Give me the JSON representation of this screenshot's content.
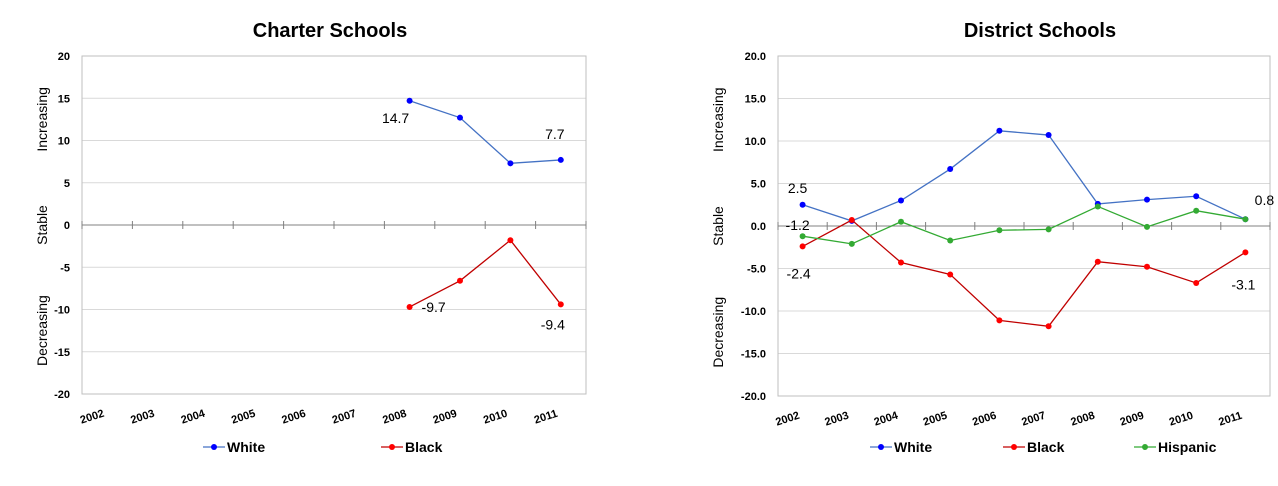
{
  "chart_data": [
    {
      "type": "line",
      "title": "Charter Schools",
      "categories": [
        "2002",
        "2003",
        "2004",
        "2005",
        "2006",
        "2007",
        "2008",
        "2009",
        "2010",
        "2011"
      ],
      "ylim": [
        -20,
        20
      ],
      "yticks": [
        "20",
        "15",
        "10",
        "5",
        "0",
        "-5",
        "-10",
        "-15",
        "-20"
      ],
      "yticks_values": [
        20,
        15,
        10,
        5,
        0,
        -5,
        -10,
        -15,
        -20
      ],
      "band_labels": [
        "Increasing",
        "Stable",
        "Decreasing"
      ],
      "grid": true,
      "legend_position": "bottom",
      "series": [
        {
          "name": "White",
          "color": "#0000ff",
          "line_color": "#4472c4",
          "values": [
            null,
            null,
            null,
            null,
            null,
            null,
            14.7,
            12.7,
            7.3,
            7.7
          ]
        },
        {
          "name": "Black",
          "color": "#ff0000",
          "line_color": "#c00000",
          "values": [
            null,
            null,
            null,
            null,
            null,
            null,
            -9.7,
            -6.6,
            -1.8,
            -9.4
          ]
        }
      ],
      "data_labels": [
        {
          "series": 0,
          "index": 6,
          "text": "14.7"
        },
        {
          "series": 0,
          "index": 9,
          "text": "7.7"
        },
        {
          "series": 1,
          "index": 6,
          "text": "-9.7"
        },
        {
          "series": 1,
          "index": 9,
          "text": "-9.4"
        }
      ]
    },
    {
      "type": "line",
      "title": "District Schools",
      "categories": [
        "2002",
        "2003",
        "2004",
        "2005",
        "2006",
        "2007",
        "2008",
        "2009",
        "2010",
        "2011"
      ],
      "ylim": [
        -20,
        20
      ],
      "yticks": [
        "20.0",
        "15.0",
        "10.0",
        "5.0",
        "0.0",
        "-5.0",
        "-10.0",
        "-15.0",
        "-20.0"
      ],
      "yticks_values": [
        20,
        15,
        10,
        5,
        0,
        -5,
        -10,
        -15,
        -20
      ],
      "band_labels": [
        "Increasing",
        "Stable",
        "Decreasing"
      ],
      "grid": true,
      "legend_position": "bottom",
      "series": [
        {
          "name": "White",
          "color": "#0000ff",
          "line_color": "#4472c4",
          "values": [
            2.5,
            0.6,
            3.0,
            6.7,
            11.2,
            10.7,
            2.6,
            3.1,
            3.5,
            0.8
          ]
        },
        {
          "name": "Black",
          "color": "#ff0000",
          "line_color": "#c00000",
          "values": [
            -2.4,
            0.7,
            -4.3,
            -5.7,
            -11.1,
            -11.8,
            -4.2,
            -4.8,
            -6.7,
            -3.1
          ]
        },
        {
          "name": "Hispanic",
          "color": "#33aa33",
          "line_color": "#33aa33",
          "values": [
            -1.2,
            -2.1,
            0.5,
            -1.7,
            -0.5,
            -0.4,
            2.3,
            -0.1,
            1.8,
            0.8
          ]
        }
      ],
      "data_labels": [
        {
          "series": 0,
          "index": 0,
          "text": "2.5"
        },
        {
          "series": 2,
          "index": 0,
          "text": "-1.2"
        },
        {
          "series": 1,
          "index": 0,
          "text": "-2.4"
        },
        {
          "series": 0,
          "index": 9,
          "text": "0.8"
        },
        {
          "series": 1,
          "index": 9,
          "text": "-3.1"
        }
      ]
    }
  ]
}
